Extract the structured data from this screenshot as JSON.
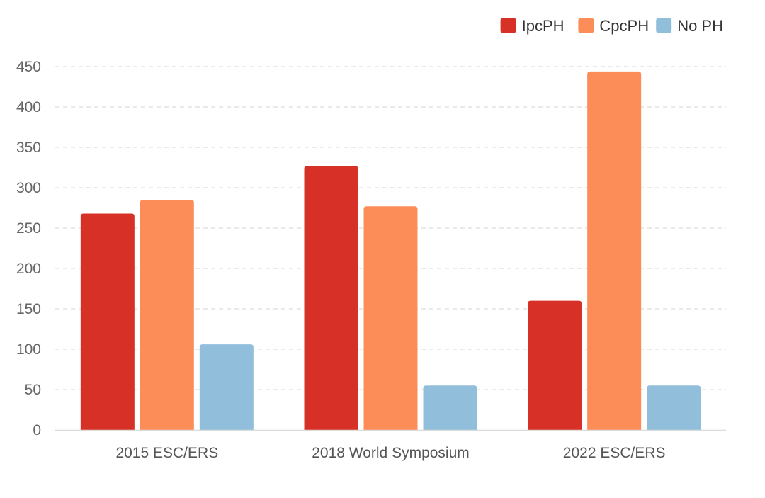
{
  "chart_data": {
    "type": "bar",
    "title": "",
    "xlabel": "",
    "ylabel": "",
    "categories": [
      "2015 ESC/ERS",
      "2018 World Symposium",
      "2022 ESC/ERS"
    ],
    "series": [
      {
        "name": "IpcPH",
        "color": "#d73027",
        "values": [
          268,
          327,
          160
        ]
      },
      {
        "name": "CpcPH",
        "color": "#fc8d59",
        "values": [
          285,
          277,
          444
        ]
      },
      {
        "name": "No PH",
        "color": "#91bfdb",
        "values": [
          106,
          55,
          55
        ]
      }
    ],
    "ylim": [
      0,
      450
    ],
    "yticks": [
      0,
      50,
      100,
      150,
      200,
      250,
      300,
      350,
      400,
      450
    ],
    "ytick_labels": [
      "0",
      "50",
      "100",
      "150",
      "200",
      "250",
      "300",
      "350",
      "400",
      "450"
    ],
    "grid": true,
    "legend_position": "top-right"
  }
}
